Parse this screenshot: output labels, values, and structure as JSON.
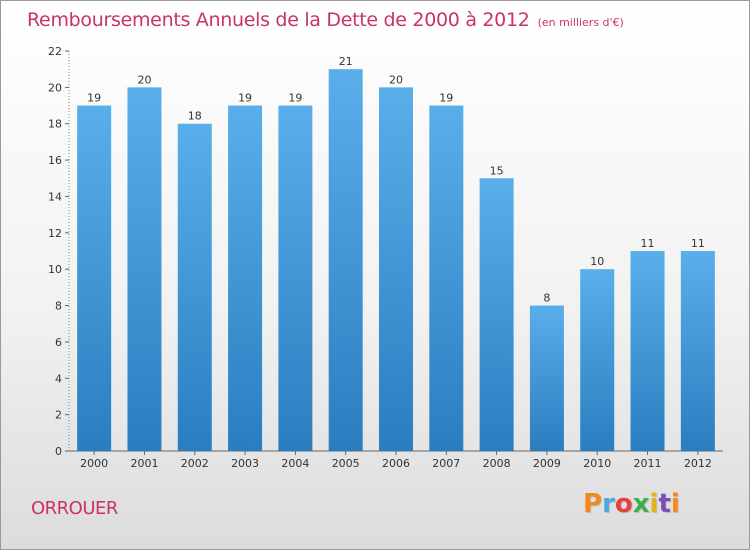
{
  "header": {
    "title": "Remboursements Annuels de la Dette de 2000 à 2012",
    "subtitle": "(en milliers d'€)"
  },
  "footer": {
    "commune": "ORROUER",
    "logo_text": "Proxiti"
  },
  "colors": {
    "title": "#c8336a",
    "bar_top": "#5aaeea",
    "bar_bottom": "#2a7ec0",
    "label": "#333333"
  },
  "chart_data": {
    "type": "bar",
    "title": "Remboursements Annuels de la Dette de 2000 à 2012",
    "subtitle": "(en milliers d'€)",
    "xlabel": "",
    "ylabel": "",
    "categories": [
      "2000",
      "2001",
      "2002",
      "2003",
      "2004",
      "2005",
      "2006",
      "2007",
      "2008",
      "2009",
      "2010",
      "2011",
      "2012"
    ],
    "values": [
      19,
      20,
      18,
      19,
      19,
      21,
      20,
      19,
      15,
      8,
      10,
      11,
      11
    ],
    "ylim": [
      0,
      22
    ],
    "yticks": [
      0,
      2,
      4,
      6,
      8,
      10,
      12,
      14,
      16,
      18,
      20,
      22
    ],
    "grid": false,
    "legend": "none",
    "data_labels": true
  }
}
